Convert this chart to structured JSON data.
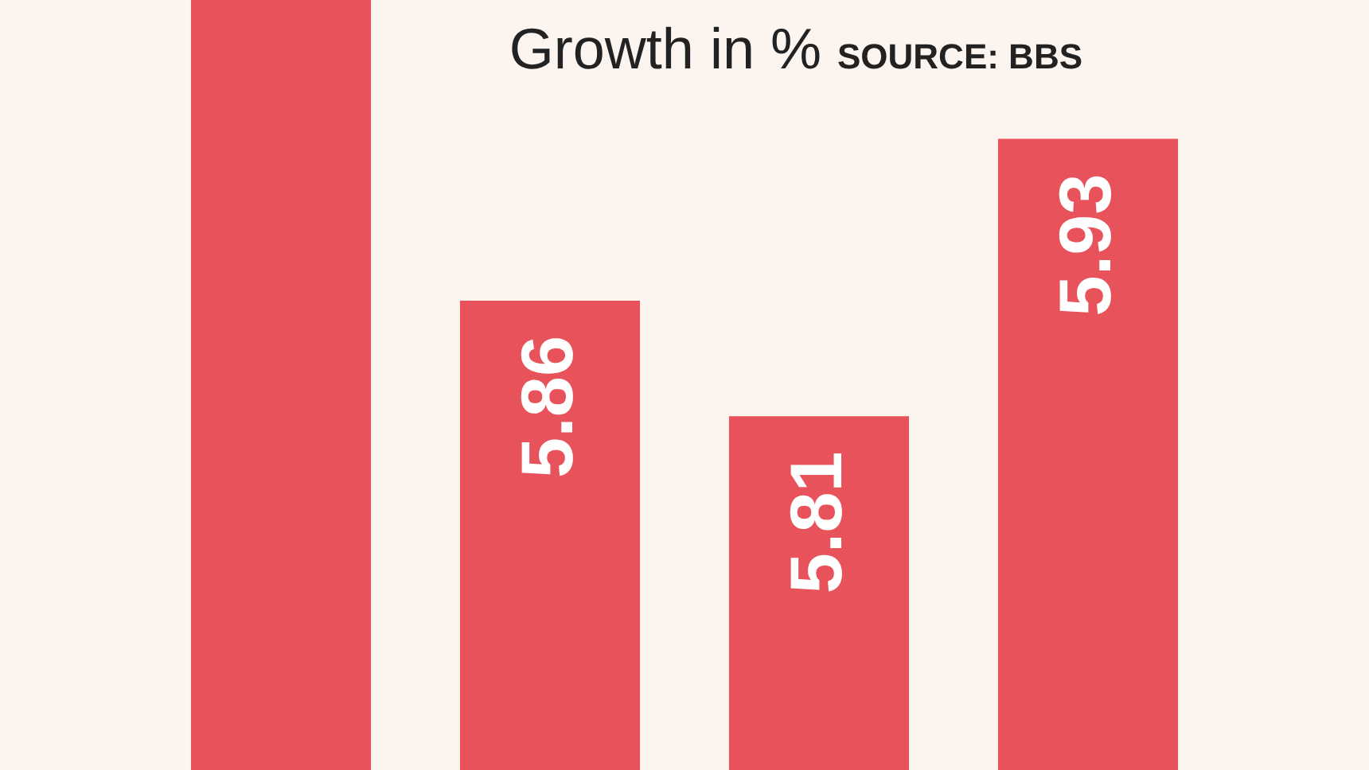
{
  "chart_data": {
    "type": "bar",
    "title": "Growth in %",
    "annotations": [
      "SOURCE: BBS"
    ],
    "categories": [
      null,
      null,
      null,
      null
    ],
    "values": [
      5.99,
      5.86,
      5.81,
      5.93
    ],
    "value_labels": [
      null,
      "5.86",
      "5.81",
      "5.93"
    ],
    "color": "#e8525a",
    "ylim": [
      5.657,
      5.99
    ],
    "grid": false,
    "tick_labels": false
  }
}
